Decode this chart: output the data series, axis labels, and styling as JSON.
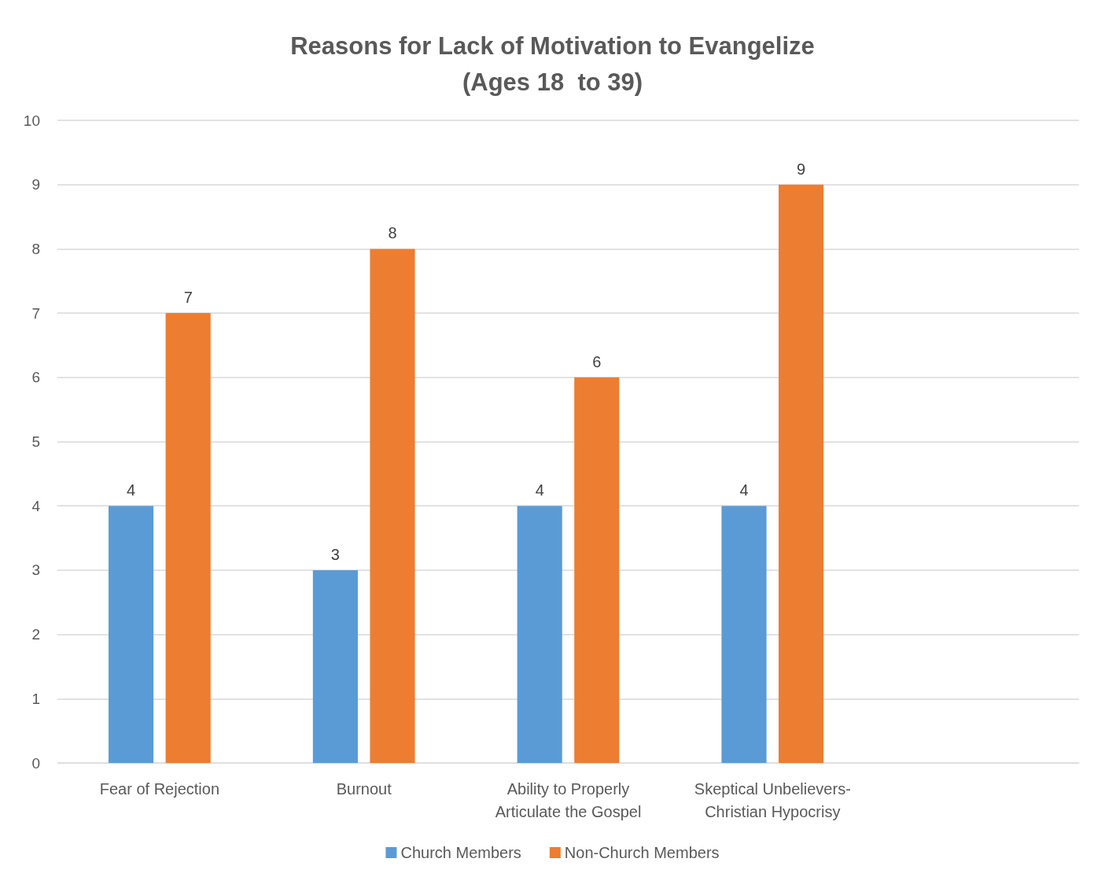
{
  "chart_data": {
    "type": "bar",
    "title": "Reasons for Lack of Motivation to Evangelize\n(Ages 18  to 39)",
    "categories": [
      "Fear of Rejection",
      "Burnout",
      "Ability to Properly\nArticulate the Gospel",
      "Skeptical Unbelievers-\nChristian Hypocrisy",
      null
    ],
    "series": [
      {
        "name": "Church Members",
        "color": "#5b9bd5",
        "values": [
          4,
          3,
          4,
          4,
          null
        ]
      },
      {
        "name": "Non-Church Members",
        "color": "#ed7d31",
        "values": [
          7,
          8,
          6,
          9,
          null
        ]
      }
    ],
    "ylim": [
      0,
      10
    ],
    "yticks": [
      0,
      1,
      2,
      3,
      4,
      5,
      6,
      7,
      8,
      9,
      10
    ],
    "grid": "y",
    "legend": "bottom",
    "data_labels": true
  }
}
